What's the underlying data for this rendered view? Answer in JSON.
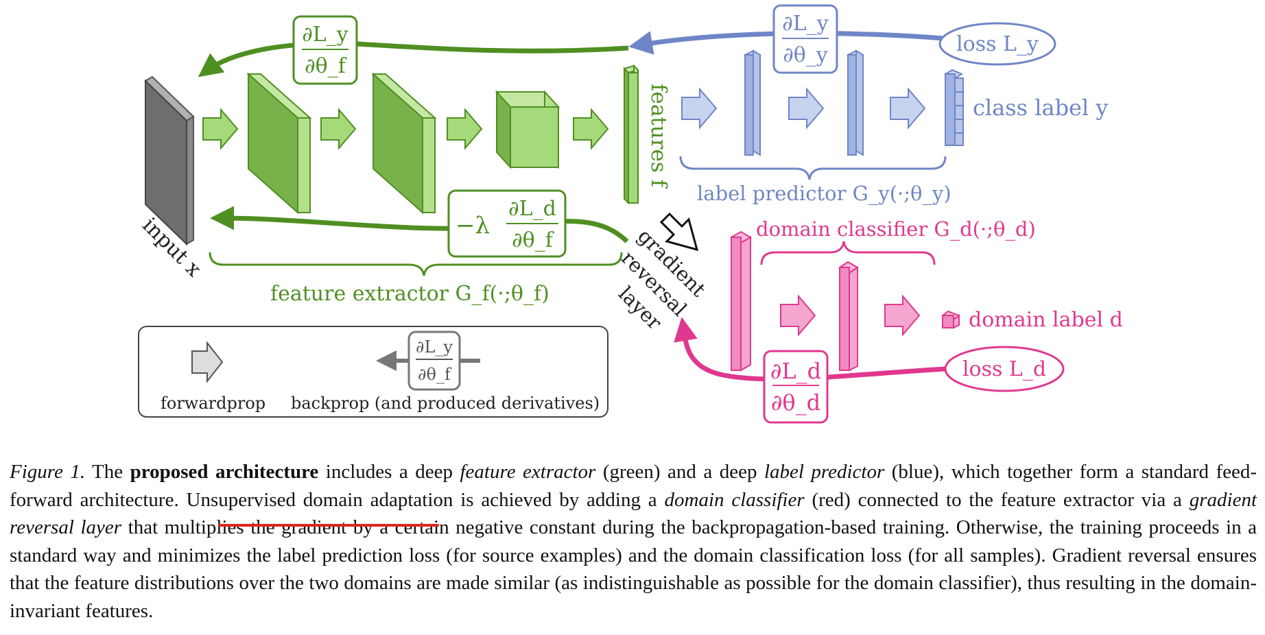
{
  "colors": {
    "green": "#4f8f22",
    "green_fill": "#a5d97a",
    "green_dark": "#79b24a",
    "blue": "#6f86c6",
    "blue_fill": "#9fb2e2",
    "pink": "#e0388e",
    "pink_fill": "#f08ac0",
    "gray": "#777777",
    "caption_underline": "#e0261c"
  },
  "labels": {
    "input": "input x",
    "features": "features f",
    "class_label": "class label y",
    "label_predictor": "label predictor G_y(·;θ_y)",
    "feature_extractor": "feature extractor G_f(·;θ_f)",
    "domain_classifier": "domain classifier G_d(·;θ_d)",
    "domain_label": "domain label d",
    "loss_y": "loss L_y",
    "loss_d": "loss L_d",
    "grl_line1": "gradient",
    "grl_line2": "reversal",
    "grl_line3": "layer"
  },
  "derivatives": {
    "dLy_dthf_num": "∂L_y",
    "dLy_dthf_den": "∂θ_f",
    "dLy_dthy_num": "∂L_y",
    "dLy_dthy_den": "∂θ_y",
    "dLd_dthf_prefix": "−λ",
    "dLd_dthf_num": "∂L_d",
    "dLd_dthf_den": "∂θ_f",
    "dLd_dthd_num": "∂L_d",
    "dLd_dthd_den": "∂θ_d"
  },
  "legend": {
    "forward_label": "forwardprop",
    "backprop_label": "backprop (and produced derivatives)",
    "example_num": "∂L_y",
    "example_den": "∂θ_f"
  },
  "caption": {
    "figure_label": "Figure 1.",
    "s1_a": "The",
    "s1_bold": "proposed architecture",
    "s1_b": "includes a deep",
    "s1_it1": "feature extractor",
    "s1_c": "(green) and a deep",
    "s1_it2": "label predictor",
    "s1_d": "(blue), which together form a standard feed-forward architecture. Unsupervised domain adaptation is achieved by adding a",
    "s1_it3": "domain classifier",
    "s1_e": "(red) connected to the feature extractor via a",
    "s1_it4": "gradient reversal layer",
    "s1_f": "that multiplies the gradient by a certain negative constant during the backpropagation-based training.  Otherwise, the training proceeds in a standard way and minimizes the label prediction loss (for source examples) and the domain classification loss (for all samples).  Gradient reversal ensures that the feature distributions over the two domains are made similar (as indistinguishable as possible for the domain classifier), thus resulting in the domain-invariant features."
  }
}
